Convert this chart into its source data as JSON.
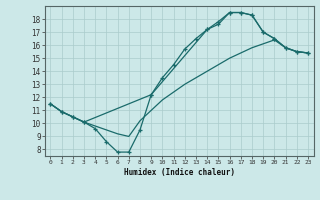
{
  "xlabel": "Humidex (Indice chaleur)",
  "bg_color": "#cce8e8",
  "grid_color": "#aacccc",
  "line_color": "#1a6b6b",
  "xlim": [
    -0.5,
    23.5
  ],
  "ylim": [
    7.5,
    19.0
  ],
  "xticks": [
    0,
    1,
    2,
    3,
    4,
    5,
    6,
    7,
    8,
    9,
    10,
    11,
    12,
    13,
    14,
    15,
    16,
    17,
    18,
    19,
    20,
    21,
    22,
    23
  ],
  "yticks": [
    8,
    9,
    10,
    11,
    12,
    13,
    14,
    15,
    16,
    17,
    18
  ],
  "line1_x": [
    0,
    1,
    2,
    3,
    4,
    5,
    6,
    7,
    8,
    9,
    10,
    11,
    12,
    13,
    14,
    15,
    16,
    17,
    18,
    19,
    20,
    21,
    22,
    23
  ],
  "line1_y": [
    11.5,
    10.9,
    10.5,
    10.1,
    9.6,
    8.6,
    7.8,
    7.8,
    9.5,
    12.2,
    13.5,
    14.5,
    15.7,
    16.5,
    17.2,
    17.8,
    18.5,
    18.5,
    18.3,
    17.0,
    16.5,
    15.8,
    15.5,
    15.4
  ],
  "line2_x": [
    0,
    1,
    2,
    3,
    4,
    5,
    6,
    7,
    8,
    9,
    10,
    11,
    12,
    13,
    14,
    15,
    16,
    17,
    18,
    19,
    20,
    21,
    22,
    23
  ],
  "line2_y": [
    11.5,
    10.9,
    10.5,
    10.1,
    9.8,
    9.5,
    9.2,
    9.0,
    10.2,
    11.0,
    11.8,
    12.4,
    13.0,
    13.5,
    14.0,
    14.5,
    15.0,
    15.4,
    15.8,
    16.1,
    16.4,
    15.8,
    15.5,
    15.4
  ],
  "line3_x": [
    0,
    1,
    2,
    3,
    9,
    14,
    15,
    16,
    17,
    18,
    19,
    20,
    21,
    22,
    23
  ],
  "line3_y": [
    11.5,
    10.9,
    10.5,
    10.1,
    12.2,
    17.2,
    17.6,
    18.5,
    18.5,
    18.3,
    17.0,
    16.5,
    15.8,
    15.5,
    15.4
  ]
}
